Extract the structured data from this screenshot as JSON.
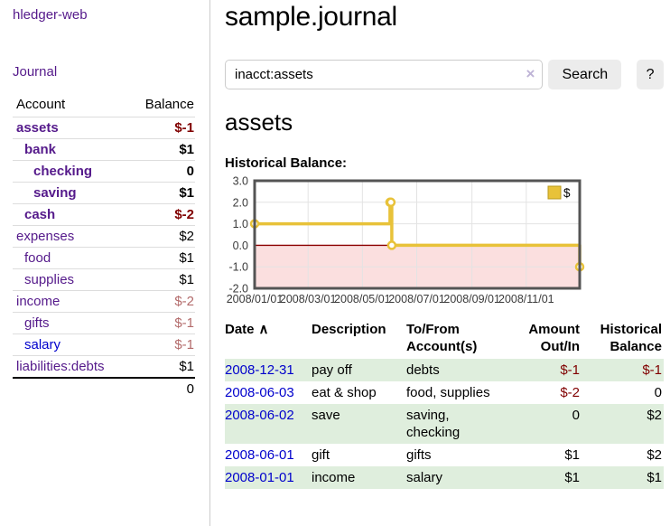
{
  "app": {
    "title": "hledger-web",
    "nav_journal": "Journal"
  },
  "sidebar": {
    "header": {
      "account": "Account",
      "balance": "Balance"
    },
    "accounts": [
      {
        "name": "assets",
        "balance": "$-1"
      },
      {
        "name": "bank",
        "balance": "$1"
      },
      {
        "name": "checking",
        "balance": "0"
      },
      {
        "name": "saving",
        "balance": "$1"
      },
      {
        "name": "cash",
        "balance": "$-2"
      },
      {
        "name": "expenses",
        "balance": "$2"
      },
      {
        "name": "food",
        "balance": "$1"
      },
      {
        "name": "supplies",
        "balance": "$1"
      },
      {
        "name": "income",
        "balance": "$-2"
      },
      {
        "name": "gifts",
        "balance": "$-1"
      },
      {
        "name": "salary",
        "balance": "$-1"
      },
      {
        "name": "liabilities:debts",
        "balance": "$1"
      }
    ],
    "total": "0"
  },
  "header": {
    "title": "sample.journal"
  },
  "search": {
    "value": "inacct:assets",
    "clear_icon": "×",
    "button": "Search",
    "help_button": "?"
  },
  "account_page": {
    "title": "assets",
    "chart_label": "Historical Balance:"
  },
  "chart_data": {
    "type": "line",
    "step": true,
    "title": "Historical Balance:",
    "series": [
      {
        "name": "$",
        "points": [
          [
            "2008-01-01",
            1
          ],
          [
            "2008-06-01",
            2
          ],
          [
            "2008-06-02",
            2
          ],
          [
            "2008-06-03",
            0
          ],
          [
            "2008-12-31",
            -1
          ]
        ]
      }
    ],
    "ylim": [
      -2,
      3
    ],
    "yticks": [
      3,
      2,
      1,
      0,
      -1,
      -2
    ],
    "xrange": [
      "2008-01-01",
      "2008-12-31"
    ],
    "xticks": [
      "2008-01-01",
      "2008-03-01",
      "2008-05-01",
      "2008-07-01",
      "2008-09-01",
      "2008-11-01"
    ],
    "xtick_labels": [
      "2008/01/01",
      "2008/03/01",
      "2008/05/01",
      "2008/07/01",
      "2008/09/01",
      "2008/11/01"
    ],
    "legend_position": "top-right",
    "grid": true,
    "colors": {
      "line": "#e8c239",
      "marker_fill": "#ffffff",
      "negative_region": "#fbdfdf",
      "zero_line": "#8b0000",
      "grid": "#e3e3e3",
      "border": "#545454",
      "legend_swatch_border": "#b99a1d"
    }
  },
  "register": {
    "columns": [
      "Date",
      "Description",
      "To/From\nAccount(s)",
      "Amount\nOut/In",
      "Historical\nBalance"
    ],
    "sort_icon": "∧",
    "rows": [
      {
        "date": "2008-12-31",
        "description": "pay off",
        "accounts": "debts",
        "amount": "$-1",
        "balance": "$-1"
      },
      {
        "date": "2008-06-03",
        "description": "eat & shop",
        "accounts": "food, supplies",
        "amount": "$-2",
        "balance": "0"
      },
      {
        "date": "2008-06-02",
        "description": "save",
        "accounts": "saving,\nchecking",
        "amount": "0",
        "balance": "$2"
      },
      {
        "date": "2008-06-01",
        "description": "gift",
        "accounts": "gifts",
        "amount": "$1",
        "balance": "$2"
      },
      {
        "date": "2008-01-01",
        "description": "income",
        "accounts": "salary",
        "amount": "$1",
        "balance": "$1"
      }
    ]
  },
  "ui_colors": {
    "purple_link": "#551a8b",
    "blue_link": "#0000cc",
    "negative": "#800000",
    "negative_faded": "#b36b6b",
    "row_stripe_green": "#dfeedd",
    "button_gray": "#ececec"
  }
}
